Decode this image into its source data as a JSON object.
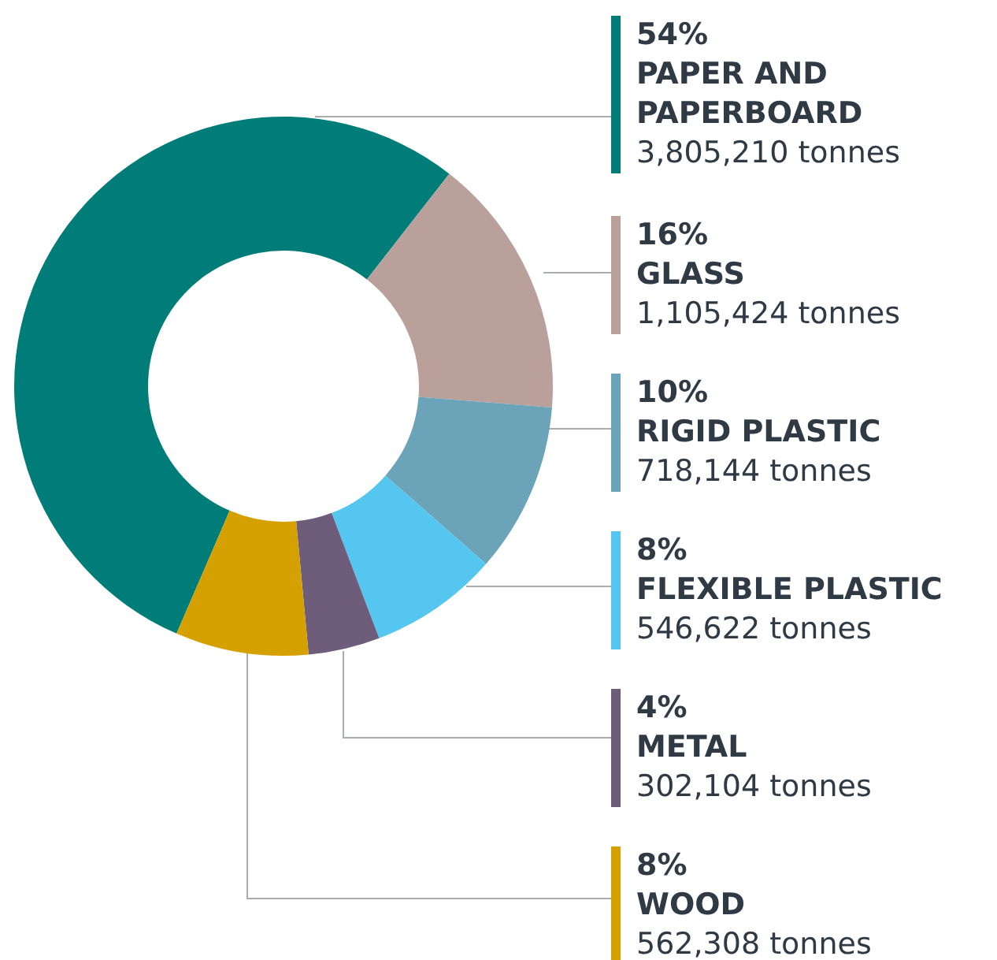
{
  "chart_data": {
    "type": "donut",
    "categories": [
      "PAPER AND PAPERBOARD",
      "GLASS",
      "RIGID PLASTIC",
      "FLEXIBLE PLASTIC",
      "METAL",
      "WOOD"
    ],
    "values": [
      3805210,
      1105424,
      718144,
      546622,
      302104,
      562308
    ],
    "colors": [
      "#007d78",
      "#b9a09b",
      "#6ba3b8",
      "#55c6ef",
      "#6e5c7b",
      "#d4a100"
    ],
    "value_labels": [
      "3,805,210 tonnes",
      "1,105,424 tonnes",
      "718,144 tonnes",
      "546,622 tonnes",
      "302,104 tonnes",
      "562,308 tonnes"
    ],
    "annotations": [
      "54%",
      "16%",
      "10%",
      "8%",
      "4%",
      "8%"
    ]
  }
}
